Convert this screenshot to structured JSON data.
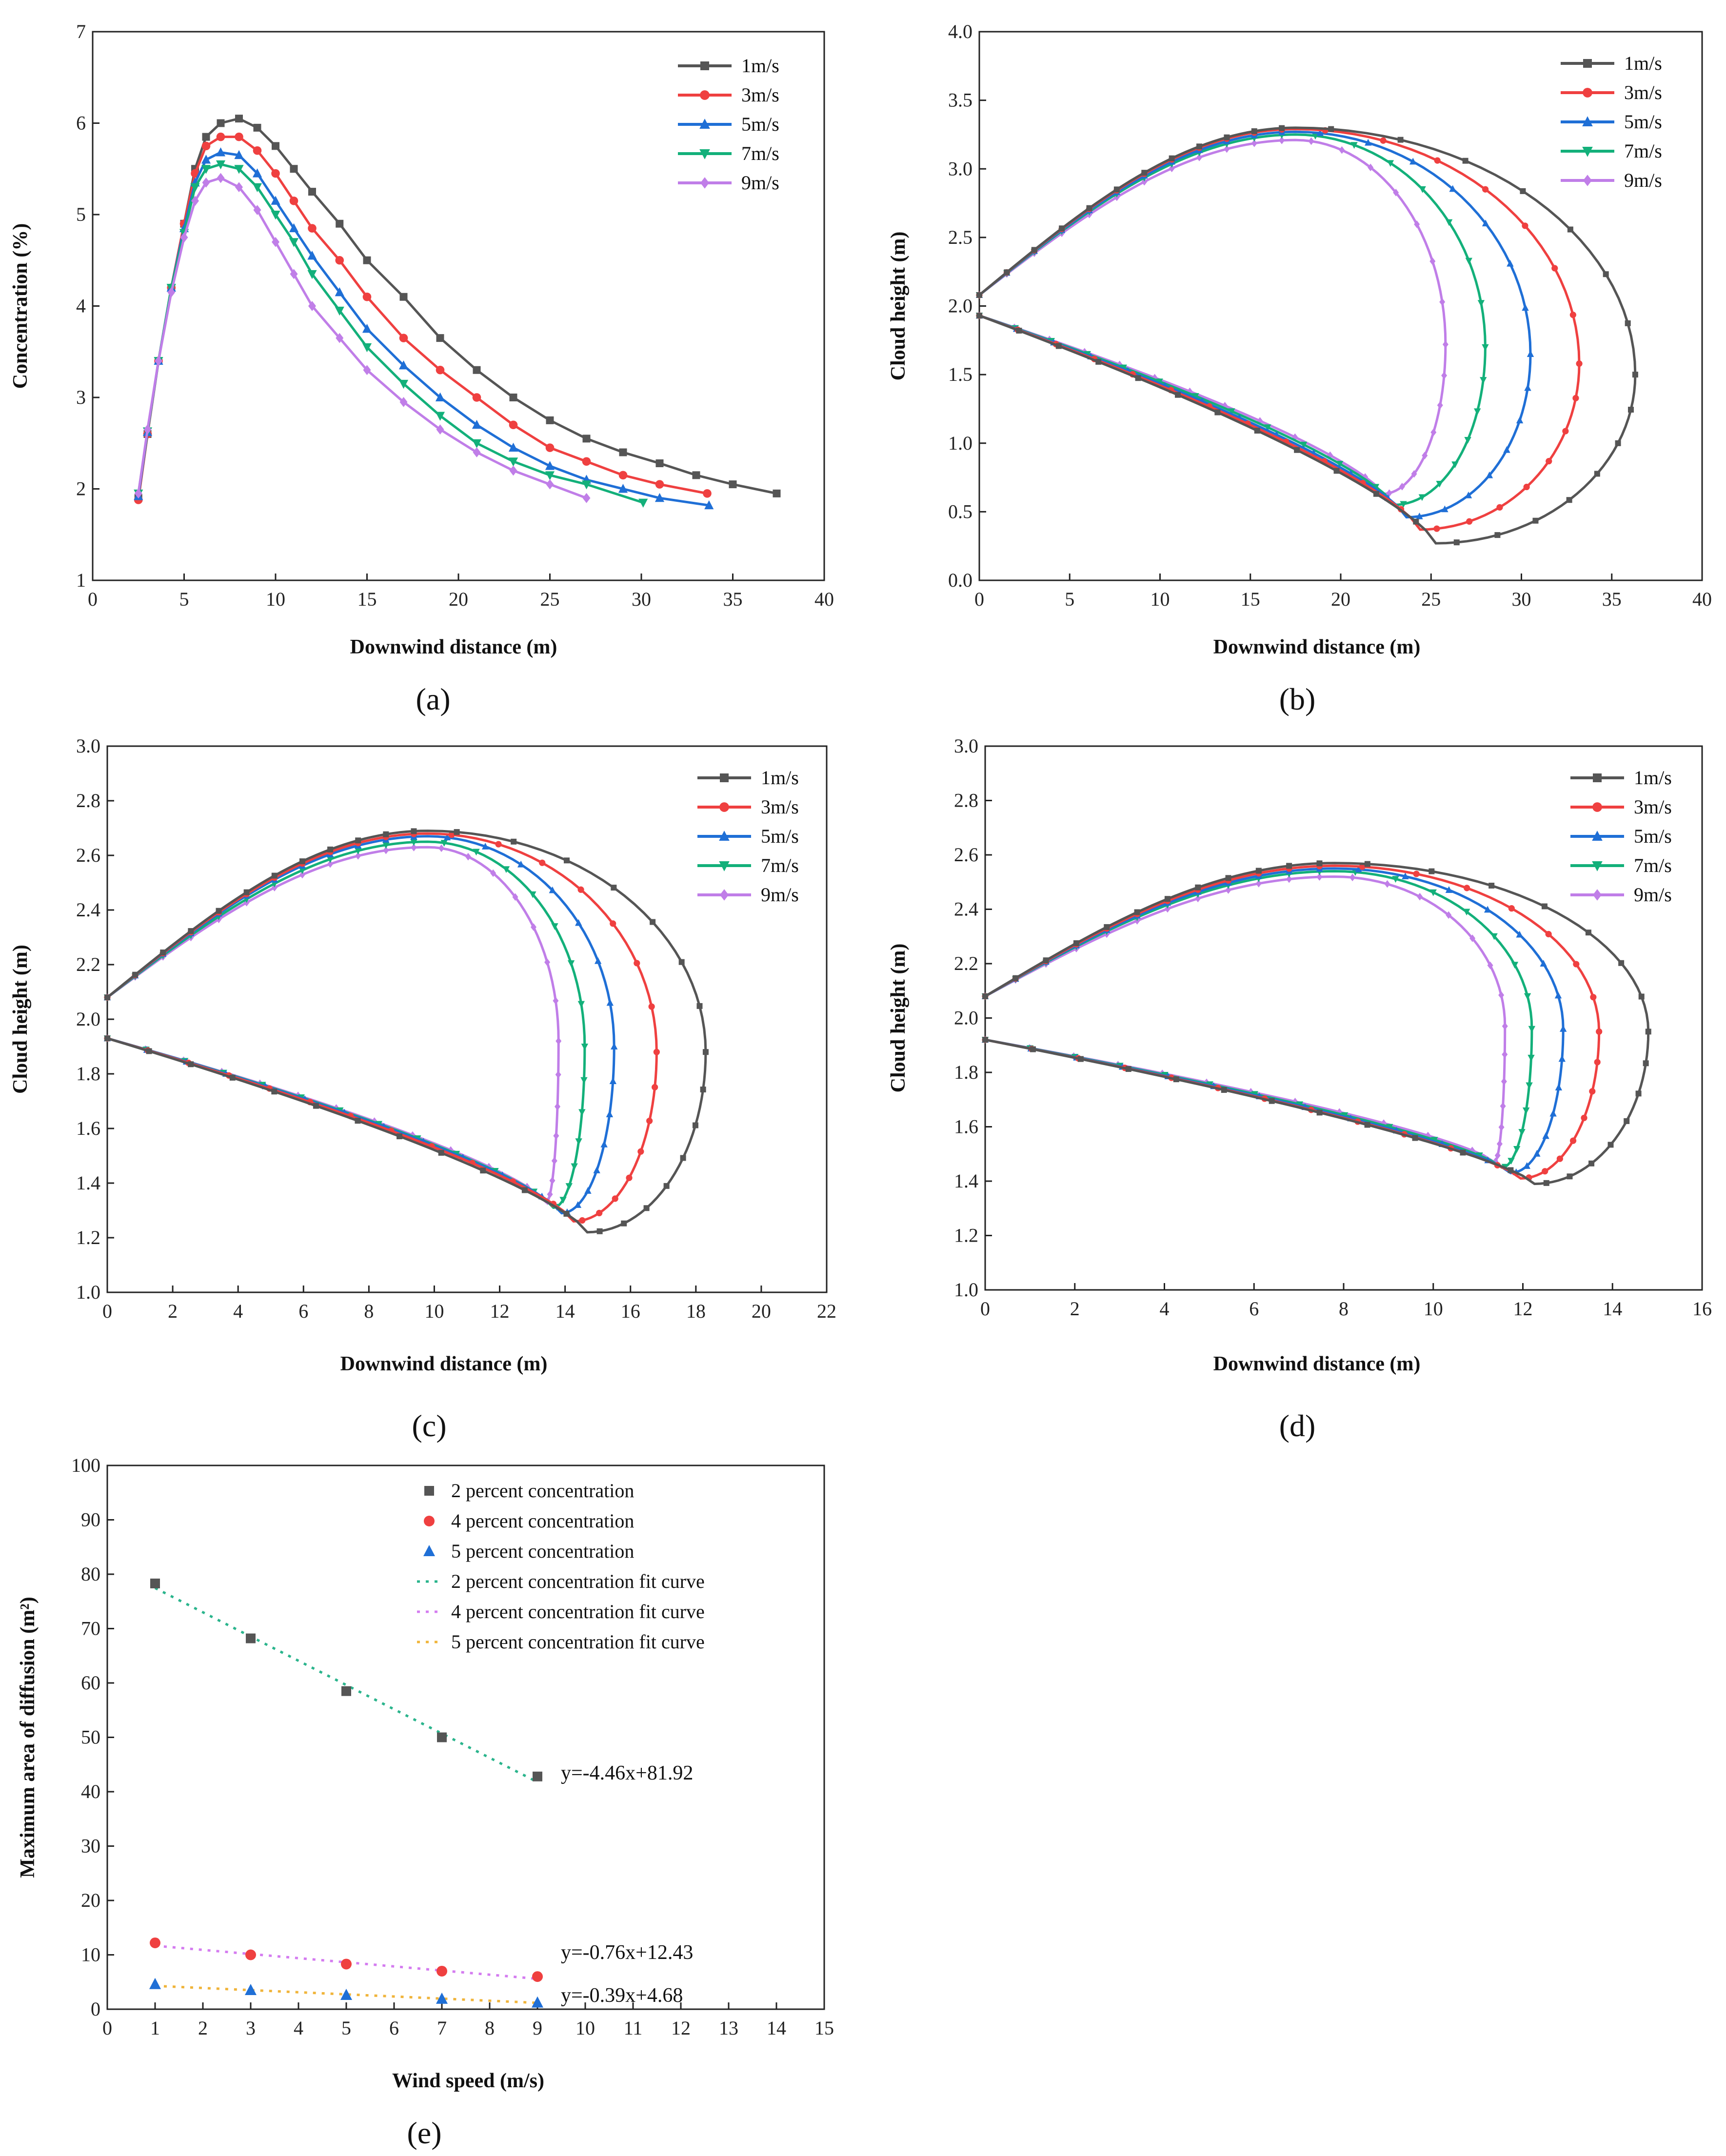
{
  "figure": {
    "captions": [
      "(a)",
      "(b)",
      "(c)",
      "(d)",
      "(e)"
    ]
  },
  "colors": {
    "1m/s": "#555555",
    "3m/s": "#ef4040",
    "5m/s": "#1f6fd6",
    "7m/s": "#13b07a",
    "9m/s": "#c07ee8",
    "s2": "#555555",
    "s4": "#ef4040",
    "s5": "#1f6fd6",
    "f2": "#2ab48c",
    "f4": "#d47cf0",
    "f5": "#f0b43a"
  },
  "chart_data": [
    {
      "id": "a",
      "type": "line",
      "title": "",
      "xlabel": "Downwind distance (m)",
      "ylabel": "Concentration (%)",
      "xlim": [
        0,
        40
      ],
      "ylim": [
        1,
        7
      ],
      "xticks": [
        0,
        5,
        10,
        15,
        20,
        25,
        30,
        35,
        40
      ],
      "yticks": [
        1,
        2,
        3,
        4,
        5,
        6,
        7
      ],
      "legend": "top-right",
      "series": [
        {
          "name": "1m/s",
          "marker": "square",
          "x": [
            2.5,
            3,
            3.6,
            4.3,
            5,
            5.6,
            6.2,
            7,
            8,
            9,
            10,
            11,
            12,
            13.5,
            15,
            17,
            19,
            21,
            23,
            25,
            27,
            29,
            31,
            33,
            35,
            37.4
          ],
          "y": [
            1.9,
            2.6,
            3.4,
            4.2,
            4.9,
            5.5,
            5.85,
            6.0,
            6.05,
            5.95,
            5.75,
            5.5,
            5.25,
            4.9,
            4.5,
            4.1,
            3.65,
            3.3,
            3.0,
            2.75,
            2.55,
            2.4,
            2.28,
            2.15,
            2.05,
            1.95
          ]
        },
        {
          "name": "3m/s",
          "marker": "circle",
          "x": [
            2.5,
            3,
            3.6,
            4.3,
            5,
            5.6,
            6.2,
            7,
            8,
            9,
            10,
            11,
            12,
            13.5,
            15,
            17,
            19,
            21,
            23,
            25,
            27,
            29,
            31,
            33.6
          ],
          "y": [
            1.88,
            2.6,
            3.4,
            4.2,
            4.9,
            5.45,
            5.75,
            5.85,
            5.85,
            5.7,
            5.45,
            5.15,
            4.85,
            4.5,
            4.1,
            3.65,
            3.3,
            3.0,
            2.7,
            2.45,
            2.3,
            2.15,
            2.05,
            1.95
          ]
        },
        {
          "name": "5m/s",
          "marker": "triangle",
          "x": [
            2.5,
            3,
            3.6,
            4.3,
            5,
            5.6,
            6.2,
            7,
            8,
            9,
            10,
            11,
            12,
            13.5,
            15,
            17,
            19,
            21,
            23,
            25,
            27,
            29,
            31,
            33.7
          ],
          "y": [
            1.92,
            2.62,
            3.4,
            4.2,
            4.85,
            5.35,
            5.6,
            5.68,
            5.65,
            5.45,
            5.15,
            4.85,
            4.55,
            4.15,
            3.75,
            3.35,
            3.0,
            2.7,
            2.45,
            2.25,
            2.1,
            2.0,
            1.9,
            1.82
          ]
        },
        {
          "name": "7m/s",
          "marker": "triangle-down",
          "x": [
            2.5,
            3,
            3.6,
            4.3,
            5,
            5.6,
            6.2,
            7,
            8,
            9,
            10,
            11,
            12,
            13.5,
            15,
            17,
            19,
            21,
            23,
            25,
            27,
            30.1
          ],
          "y": [
            1.95,
            2.63,
            3.4,
            4.2,
            4.8,
            5.3,
            5.5,
            5.55,
            5.5,
            5.3,
            5.0,
            4.7,
            4.35,
            3.95,
            3.55,
            3.15,
            2.8,
            2.5,
            2.3,
            2.15,
            2.05,
            1.85
          ]
        },
        {
          "name": "9m/s",
          "marker": "diamond",
          "x": [
            2.5,
            3,
            3.6,
            4.3,
            5,
            5.6,
            6.2,
            7,
            8,
            9,
            10,
            11,
            12,
            13.5,
            15,
            17,
            19,
            21,
            23,
            25,
            27
          ],
          "y": [
            1.95,
            2.65,
            3.4,
            4.15,
            4.75,
            5.15,
            5.35,
            5.4,
            5.3,
            5.05,
            4.7,
            4.35,
            4.0,
            3.65,
            3.3,
            2.95,
            2.65,
            2.4,
            2.2,
            2.05,
            1.9
          ]
        }
      ]
    },
    {
      "id": "b",
      "type": "line",
      "title": "",
      "xlabel": "Downwind distance (m)",
      "ylabel": "Cloud height (m)",
      "xlim": [
        0,
        40
      ],
      "ylim": [
        0,
        4
      ],
      "xticks": [
        0,
        5,
        10,
        15,
        20,
        25,
        30,
        35,
        40
      ],
      "yticks": [
        0.0,
        0.5,
        1.0,
        1.5,
        2.0,
        2.5,
        3.0,
        3.5,
        4.0
      ],
      "ytick_decimals": 1,
      "legend": "top-right",
      "contour": {
        "y0_top": 2.08,
        "y0_bottom": 1.93,
        "apex_x": 17.5
      },
      "series": [
        {
          "name": "1m/s",
          "marker": "square",
          "x_max": 36.3,
          "y_top": 3.3,
          "y_bottom": 0.27,
          "y_mid": 1.5
        },
        {
          "name": "3m/s",
          "marker": "circle",
          "x_max": 33.2,
          "y_top": 3.29,
          "y_bottom": 0.37,
          "y_mid": 1.58
        },
        {
          "name": "5m/s",
          "marker": "triangle",
          "x_max": 30.5,
          "y_top": 3.27,
          "y_bottom": 0.46,
          "y_mid": 1.65
        },
        {
          "name": "7m/s",
          "marker": "triangle-down",
          "x_max": 28.0,
          "y_top": 3.25,
          "y_bottom": 0.55,
          "y_mid": 1.7
        },
        {
          "name": "9m/s",
          "marker": "diamond",
          "x_max": 25.8,
          "y_top": 3.21,
          "y_bottom": 0.63,
          "y_mid": 1.72
        }
      ]
    },
    {
      "id": "c",
      "type": "line",
      "title": "",
      "xlabel": "Downwind distance (m)",
      "ylabel": "Cloud height (m)",
      "xlim": [
        0,
        22
      ],
      "ylim": [
        1,
        3
      ],
      "xticks": [
        0,
        2,
        4,
        6,
        8,
        10,
        12,
        14,
        16,
        18,
        20,
        22
      ],
      "yticks": [
        1.0,
        1.2,
        1.4,
        1.6,
        1.8,
        2.0,
        2.2,
        2.4,
        2.6,
        2.8,
        3.0
      ],
      "ytick_decimals": 1,
      "legend": "top-right",
      "contour": {
        "y0_top": 2.08,
        "y0_bottom": 1.93,
        "apex_x": 9.8
      },
      "series": [
        {
          "name": "1m/s",
          "marker": "square",
          "x_max": 18.3,
          "y_top": 2.69,
          "y_bottom": 1.22,
          "y_mid": 1.88
        },
        {
          "name": "3m/s",
          "marker": "circle",
          "x_max": 16.8,
          "y_top": 2.68,
          "y_bottom": 1.26,
          "y_mid": 1.88
        },
        {
          "name": "5m/s",
          "marker": "triangle",
          "x_max": 15.5,
          "y_top": 2.67,
          "y_bottom": 1.29,
          "y_mid": 1.9
        },
        {
          "name": "7m/s",
          "marker": "triangle-down",
          "x_max": 14.6,
          "y_top": 2.65,
          "y_bottom": 1.31,
          "y_mid": 1.9
        },
        {
          "name": "9m/s",
          "marker": "diamond",
          "x_max": 13.8,
          "y_top": 2.63,
          "y_bottom": 1.33,
          "y_mid": 1.92
        }
      ]
    },
    {
      "id": "d",
      "type": "line",
      "title": "",
      "xlabel": "Downwind distance (m)",
      "ylabel": "Cloud height (m)",
      "xlim": [
        0,
        16
      ],
      "ylim": [
        1,
        3
      ],
      "xticks": [
        0,
        2,
        4,
        6,
        8,
        10,
        12,
        14,
        16
      ],
      "yticks": [
        1.0,
        1.2,
        1.4,
        1.6,
        1.8,
        2.0,
        2.2,
        2.4,
        2.6,
        2.8,
        3.0
      ],
      "ytick_decimals": 1,
      "legend": "top-right",
      "contour": {
        "y0_top": 2.08,
        "y0_bottom": 1.92,
        "apex_x": 7.8
      },
      "series": [
        {
          "name": "1m/s",
          "marker": "square",
          "x_max": 14.8,
          "y_top": 2.57,
          "y_bottom": 1.39,
          "y_mid": 1.95
        },
        {
          "name": "3m/s",
          "marker": "circle",
          "x_max": 13.7,
          "y_top": 2.56,
          "y_bottom": 1.41,
          "y_mid": 1.95
        },
        {
          "name": "5m/s",
          "marker": "triangle",
          "x_max": 12.9,
          "y_top": 2.55,
          "y_bottom": 1.43,
          "y_mid": 1.96
        },
        {
          "name": "7m/s",
          "marker": "triangle-down",
          "x_max": 12.2,
          "y_top": 2.54,
          "y_bottom": 1.45,
          "y_mid": 1.96
        },
        {
          "name": "9m/s",
          "marker": "diamond",
          "x_max": 11.6,
          "y_top": 2.52,
          "y_bottom": 1.47,
          "y_mid": 1.97
        }
      ]
    },
    {
      "id": "e",
      "type": "scatter",
      "title": "",
      "xlabel": "Wind speed (m/s)",
      "ylabel": "Maximum area of diffusion (m²)",
      "xlim": [
        0,
        15
      ],
      "ylim": [
        0,
        100
      ],
      "xticks": [
        0,
        1,
        2,
        3,
        4,
        5,
        6,
        7,
        8,
        9,
        10,
        11,
        12,
        13,
        14,
        15
      ],
      "yticks": [
        0,
        10,
        20,
        30,
        40,
        50,
        60,
        70,
        80,
        90,
        100
      ],
      "legend": "top-center",
      "series": [
        {
          "name": "2 percent concentration",
          "marker": "square",
          "color_key": "s2",
          "x": [
            1,
            3,
            5,
            7,
            9
          ],
          "y": [
            78.3,
            68.2,
            58.5,
            50.0,
            42.8
          ]
        },
        {
          "name": "4 percent concentration",
          "marker": "circle",
          "color_key": "s4",
          "x": [
            1,
            3,
            5,
            7,
            9
          ],
          "y": [
            12.2,
            10.0,
            8.3,
            7.0,
            6.0
          ]
        },
        {
          "name": "5 percent concentration",
          "marker": "triangle",
          "color_key": "s5",
          "x": [
            1,
            3,
            5,
            7,
            9
          ],
          "y": [
            4.6,
            3.5,
            2.6,
            1.9,
            1.2
          ]
        }
      ],
      "fits": [
        {
          "name": "2 percent concentration fit curve",
          "color_key": "f2",
          "slope": -4.46,
          "intercept": 81.92,
          "x": [
            1,
            9
          ],
          "equation": "y=-4.46x+81.92",
          "eq_at": [
            10,
            43.5
          ]
        },
        {
          "name": "4 percent concentration fit curve",
          "color_key": "f4",
          "slope": -0.76,
          "intercept": 12.43,
          "x": [
            1,
            9
          ],
          "equation": "y=-0.76x+12.43",
          "eq_at": [
            10,
            10.5
          ]
        },
        {
          "name": "5 percent concentration fit curve",
          "color_key": "f5",
          "slope": -0.39,
          "intercept": 4.68,
          "x": [
            1,
            9
          ],
          "equation": "y=-0.39x+4.68",
          "eq_at": [
            10,
            2.6
          ]
        }
      ]
    }
  ]
}
